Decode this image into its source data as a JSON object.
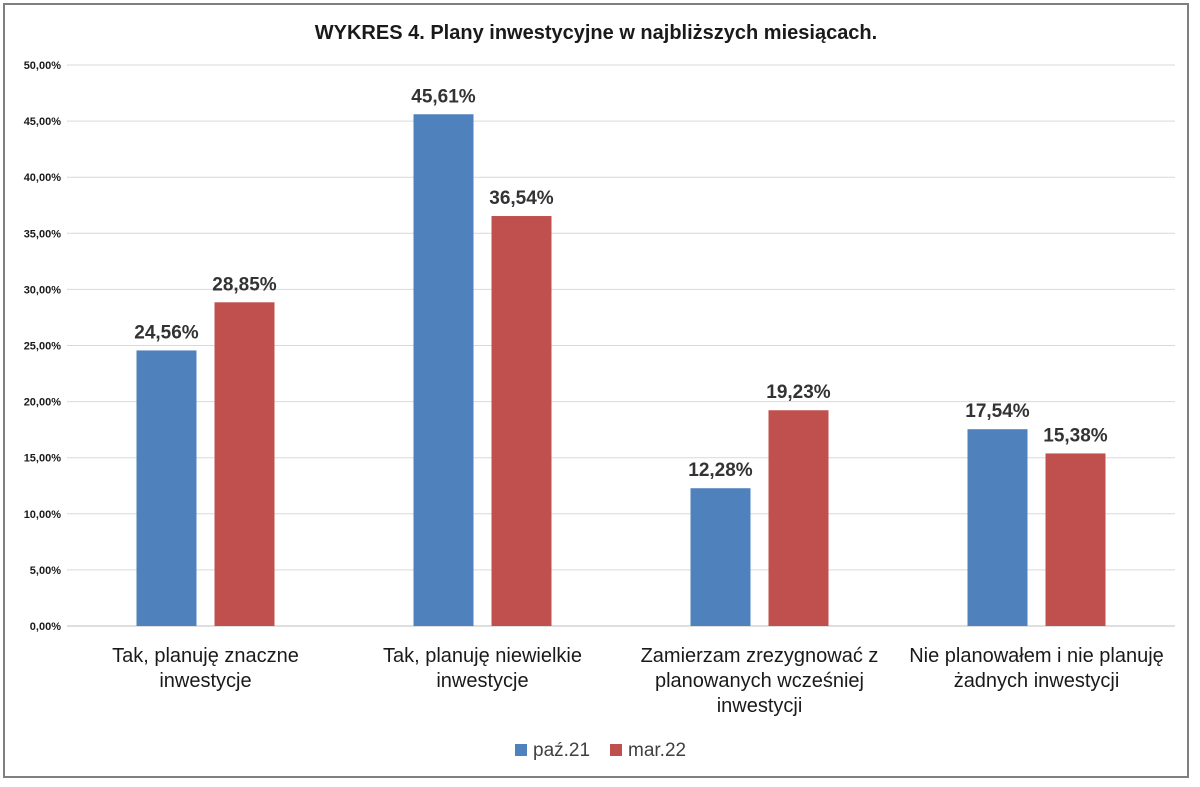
{
  "chart_data": {
    "type": "bar",
    "title": "WYKRES 4. Plany inwestycyjne w najbliższych miesiącach.",
    "xlabel": "",
    "ylabel": "",
    "ylim": [
      0,
      50
    ],
    "y_ticks": [
      "0,00%",
      "5,00%",
      "10,00%",
      "15,00%",
      "20,00%",
      "25,00%",
      "30,00%",
      "35,00%",
      "40,00%",
      "45,00%",
      "50,00%"
    ],
    "categories": [
      [
        "Tak, planuję znaczne",
        "inwestycje"
      ],
      [
        "Tak, planuję niewielkie",
        "inwestycje"
      ],
      [
        "Zamierzam zrezygnować z",
        "planowanych wcześniej",
        "inwestycji"
      ],
      [
        "Nie planowałem i nie planuję",
        "żadnych inwestycji"
      ]
    ],
    "series": [
      {
        "name": "paź.21",
        "color": "#4f81bd",
        "values": [
          24.56,
          45.61,
          12.28,
          17.54
        ],
        "labels": [
          "24,56%",
          "45,61%",
          "12,28%",
          "17,54%"
        ]
      },
      {
        "name": "mar.22",
        "color": "#c0504d",
        "values": [
          28.85,
          36.54,
          19.23,
          15.38
        ],
        "labels": [
          "28,85%",
          "36,54%",
          "19,23%",
          "15,38%"
        ]
      }
    ],
    "grid": true,
    "legend_position": "bottom"
  }
}
